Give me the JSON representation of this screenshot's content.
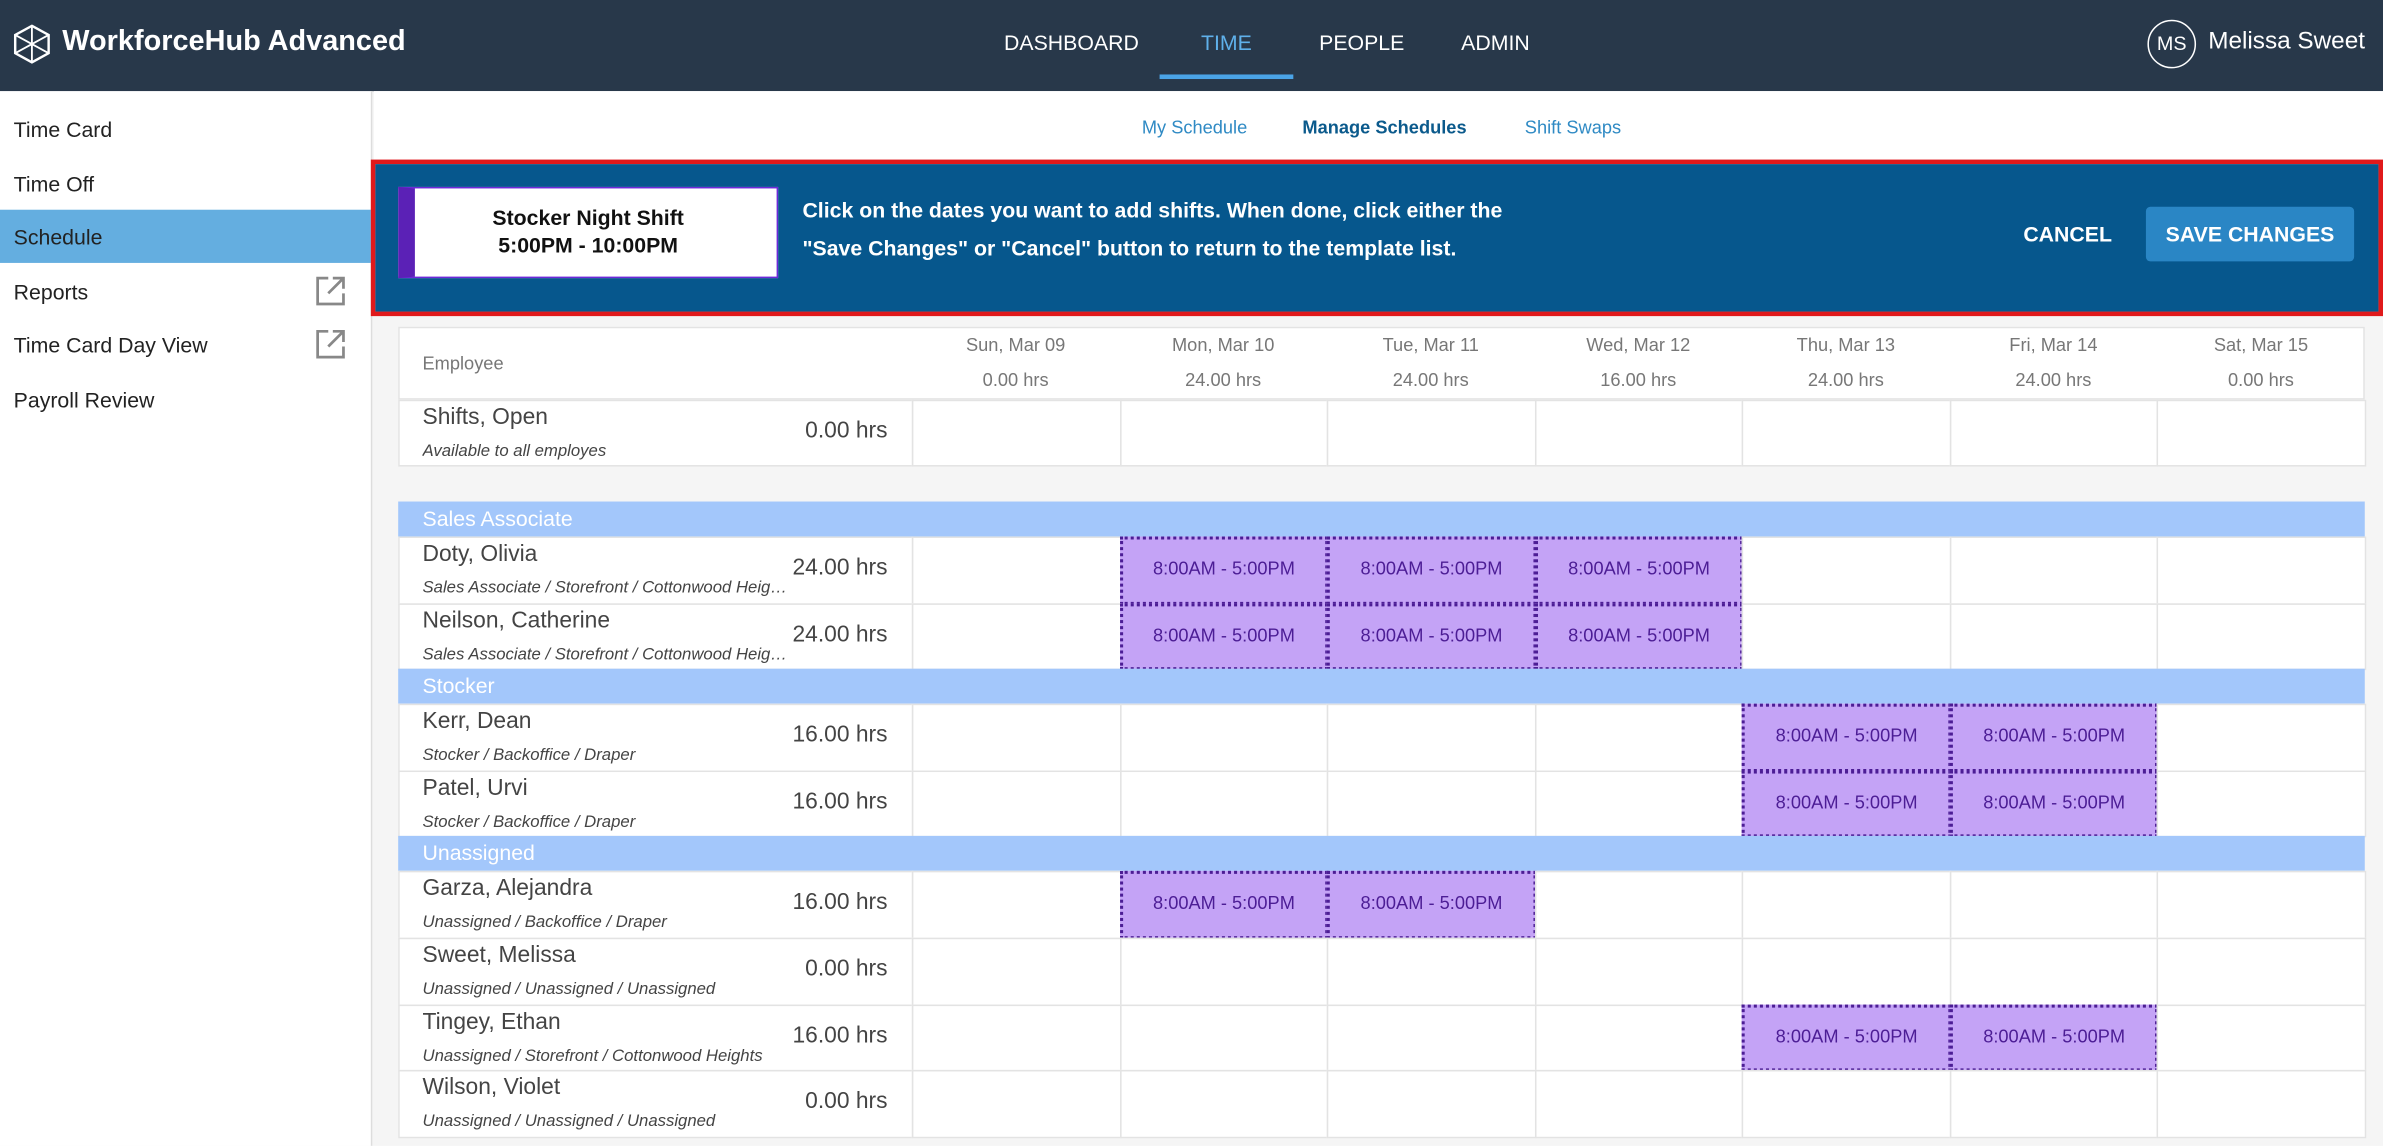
{
  "header": {
    "brand": "WorkforceHub Advanced",
    "nav": [
      "DASHBOARD",
      "TIME",
      "PEOPLE",
      "ADMIN"
    ],
    "active_nav": 1,
    "user_initials": "MS",
    "user_name": "Melissa Sweet"
  },
  "sidebar": {
    "items": [
      {
        "label": "Time Card",
        "external": false
      },
      {
        "label": "Time Off",
        "external": false
      },
      {
        "label": "Schedule",
        "external": false
      },
      {
        "label": "Reports",
        "external": true
      },
      {
        "label": "Time Card Day View",
        "external": true
      },
      {
        "label": "Payroll Review",
        "external": false
      }
    ],
    "active": 2
  },
  "tabs": {
    "items": [
      "My Schedule",
      "Manage Schedules",
      "Shift Swaps"
    ],
    "active": 1
  },
  "banner": {
    "shift_name": "Stocker Night Shift",
    "shift_time": "5:00PM - 10:00PM",
    "instructions": [
      "Click on the dates you want to add shifts. When done, click either the",
      "\"Save Changes\" or \"Cancel\" button to return to the template list."
    ],
    "cancel": "CANCEL",
    "save": "SAVE CHANGES"
  },
  "table": {
    "employee_header": "Employee",
    "days": [
      {
        "label": "Sun, Mar 09",
        "hours": "0.00 hrs"
      },
      {
        "label": "Mon, Mar 10",
        "hours": "24.00 hrs"
      },
      {
        "label": "Tue, Mar 11",
        "hours": "24.00 hrs"
      },
      {
        "label": "Wed, Mar 12",
        "hours": "16.00 hrs"
      },
      {
        "label": "Thu, Mar 13",
        "hours": "24.00 hrs"
      },
      {
        "label": "Fri, Mar 14",
        "hours": "24.00 hrs"
      },
      {
        "label": "Sat, Mar 15",
        "hours": "0.00 hrs"
      }
    ],
    "open": {
      "name": "Shifts, Open",
      "detail": "Available to all employes",
      "hours": "0.00 hrs",
      "shifts": [
        null,
        null,
        null,
        null,
        null,
        null,
        null
      ]
    },
    "groups": [
      {
        "name": "Sales Associate",
        "employees": [
          {
            "name": "Doty, Olivia",
            "detail": "Sales Associate / Storefront / Cottonwood Heights",
            "hours": "24.00 hrs",
            "shifts": [
              null,
              "8:00AM - 5:00PM",
              "8:00AM - 5:00PM",
              "8:00AM - 5:00PM",
              null,
              null,
              null
            ]
          },
          {
            "name": "Neilson, Catherine",
            "detail": "Sales Associate / Storefront / Cottonwood Heights",
            "hours": "24.00 hrs",
            "shifts": [
              null,
              "8:00AM - 5:00PM",
              "8:00AM - 5:00PM",
              "8:00AM - 5:00PM",
              null,
              null,
              null
            ]
          }
        ]
      },
      {
        "name": "Stocker",
        "employees": [
          {
            "name": "Kerr, Dean",
            "detail": "Stocker / Backoffice / Draper",
            "hours": "16.00 hrs",
            "shifts": [
              null,
              null,
              null,
              null,
              "8:00AM - 5:00PM",
              "8:00AM - 5:00PM",
              null
            ]
          },
          {
            "name": "Patel, Urvi",
            "detail": "Stocker / Backoffice / Draper",
            "hours": "16.00 hrs",
            "shifts": [
              null,
              null,
              null,
              null,
              "8:00AM - 5:00PM",
              "8:00AM - 5:00PM",
              null
            ]
          }
        ]
      },
      {
        "name": "Unassigned",
        "employees": [
          {
            "name": "Garza, Alejandra",
            "detail": "Unassigned / Backoffice / Draper",
            "hours": "16.00 hrs",
            "shifts": [
              null,
              "8:00AM - 5:00PM",
              "8:00AM - 5:00PM",
              null,
              null,
              null,
              null
            ]
          },
          {
            "name": "Sweet, Melissa",
            "detail": "Unassigned / Unassigned / Unassigned",
            "hours": "0.00 hrs",
            "shifts": [
              null,
              null,
              null,
              null,
              null,
              null,
              null
            ]
          },
          {
            "name": "Tingey, Ethan",
            "detail": "Unassigned / Storefront / Cottonwood Heights",
            "hours": "16.00 hrs",
            "shifts": [
              null,
              null,
              null,
              null,
              "8:00AM - 5:00PM",
              "8:00AM - 5:00PM",
              null
            ]
          },
          {
            "name": "Wilson, Violet",
            "detail": "Unassigned / Unassigned / Unassigned",
            "hours": "0.00 hrs",
            "shifts": [
              null,
              null,
              null,
              null,
              null,
              null,
              null
            ]
          }
        ]
      }
    ]
  }
}
